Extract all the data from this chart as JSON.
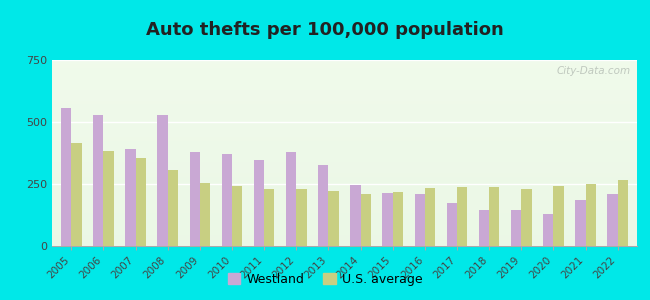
{
  "title": "Auto thefts per 100,000 population",
  "years": [
    2005,
    2006,
    2007,
    2008,
    2009,
    2010,
    2011,
    2012,
    2013,
    2014,
    2015,
    2016,
    2017,
    2018,
    2019,
    2020,
    2021,
    2022
  ],
  "westland": [
    555,
    530,
    390,
    530,
    380,
    370,
    345,
    380,
    325,
    245,
    215,
    210,
    175,
    145,
    145,
    130,
    185,
    210
  ],
  "us_avg": [
    415,
    385,
    355,
    305,
    255,
    240,
    228,
    228,
    220,
    210,
    218,
    232,
    237,
    237,
    230,
    242,
    252,
    268
  ],
  "westland_color": "#c9a8d4",
  "us_avg_color": "#c8cf82",
  "ylim": [
    0,
    750
  ],
  "yticks": [
    0,
    250,
    500,
    750
  ],
  "background_outer": "#00e8e8",
  "title_fontsize": 13,
  "bar_width": 0.32,
  "legend_westland": "Westland",
  "legend_us": "U.S. average",
  "title_color": "#222222",
  "tick_color": "#444444",
  "watermark": "City-Data.com"
}
